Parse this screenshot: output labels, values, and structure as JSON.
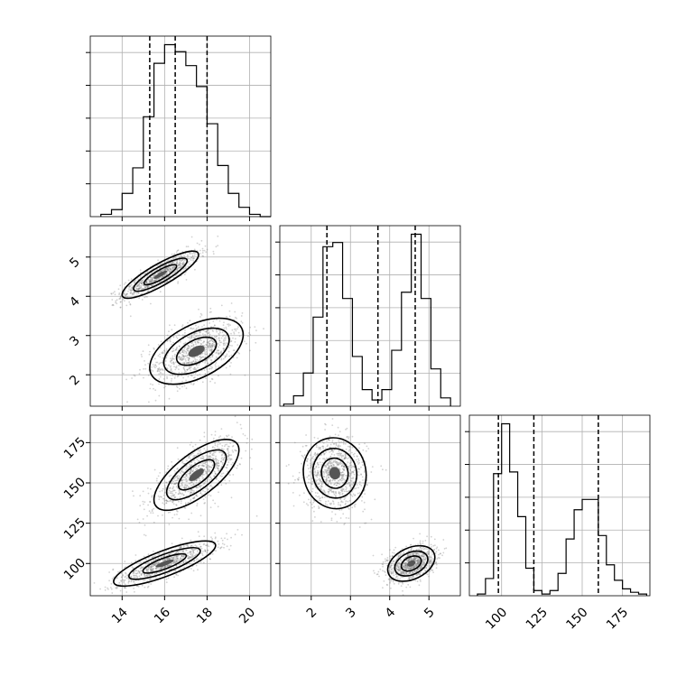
{
  "chart_data": {
    "type": "corner",
    "grid": true,
    "parameters": [
      {
        "key": "p0",
        "range": [
          12.5,
          21.0
        ],
        "ticks": [
          14,
          16,
          18,
          20
        ],
        "quantiles": [
          15.3,
          16.5,
          18.0
        ],
        "bins": [
          13.0,
          13.5,
          14.0,
          14.5,
          15.0,
          15.5,
          16.0,
          16.5,
          17.0,
          17.5,
          18.0,
          18.5,
          19.0,
          19.5,
          20.0,
          20.5,
          21.0
        ],
        "hist": [
          1,
          3,
          10,
          21,
          43,
          66,
          74,
          71,
          65,
          56,
          40,
          22,
          10,
          4,
          1,
          0
        ]
      },
      {
        "key": "p1",
        "range": [
          1.2,
          5.8
        ],
        "ticks": [
          2,
          3,
          4,
          5
        ],
        "quantiles": [
          2.4,
          3.7,
          4.65
        ],
        "bins": [
          1.3,
          1.55,
          1.8,
          2.05,
          2.3,
          2.55,
          2.8,
          3.05,
          3.3,
          3.55,
          3.8,
          4.05,
          4.3,
          4.55,
          4.8,
          5.05,
          5.3,
          5.55
        ],
        "hist": [
          1,
          5,
          16,
          43,
          77,
          79,
          52,
          24,
          8,
          3,
          8,
          27,
          55,
          83,
          52,
          18,
          4
        ]
      },
      {
        "key": "p2",
        "range": [
          80,
          192
        ],
        "ticks": [
          100,
          125,
          150,
          175
        ],
        "quantiles": [
          98,
          120,
          160
        ],
        "bins": [
          85,
          90,
          95,
          100,
          105,
          110,
          115,
          120,
          125,
          130,
          135,
          140,
          145,
          150,
          155,
          160,
          165,
          170,
          175,
          180,
          185,
          190
        ],
        "hist": [
          1,
          10,
          71,
          100,
          72,
          46,
          16,
          3,
          1,
          3,
          13,
          33,
          50,
          56,
          56,
          35,
          18,
          9,
          4,
          2,
          1
        ]
      }
    ],
    "joint": {
      "p0_p1": {
        "modes": [
          {
            "mean": [
              15.8,
              4.55
            ],
            "sd": [
              0.9,
              0.3
            ],
            "rho": 0.85,
            "weight": 0.5
          },
          {
            "mean": [
              17.5,
              2.6
            ],
            "sd": [
              1.1,
              0.42
            ],
            "rho": 0.5,
            "weight": 0.5
          }
        ]
      },
      "p0_p2": {
        "modes": [
          {
            "mean": [
              16.0,
              100
            ],
            "sd": [
              1.2,
              7
            ],
            "rho": 0.8,
            "weight": 0.5
          },
          {
            "mean": [
              17.5,
              155
            ],
            "sd": [
              1.0,
              11
            ],
            "rho": 0.7,
            "weight": 0.5
          }
        ]
      },
      "p1_p2": {
        "modes": [
          {
            "mean": [
              2.6,
              156
            ],
            "sd": [
              0.4,
              11
            ],
            "rho": -0.05,
            "weight": 0.5
          },
          {
            "mean": [
              4.55,
              100
            ],
            "sd": [
              0.3,
              5.5
            ],
            "rho": 0.35,
            "weight": 0.5
          }
        ]
      }
    },
    "tick_labels": {
      "x_bottom_p0": [
        "14",
        "16",
        "18",
        "20"
      ],
      "x_bottom_p1": [
        "2",
        "3",
        "4",
        "5"
      ],
      "x_bottom_p2": [
        "100",
        "125",
        "150",
        "175"
      ],
      "y_left_p1": [
        "2",
        "3",
        "4",
        "5"
      ],
      "y_left_p2": [
        "100",
        "125",
        "150",
        "175"
      ]
    }
  }
}
